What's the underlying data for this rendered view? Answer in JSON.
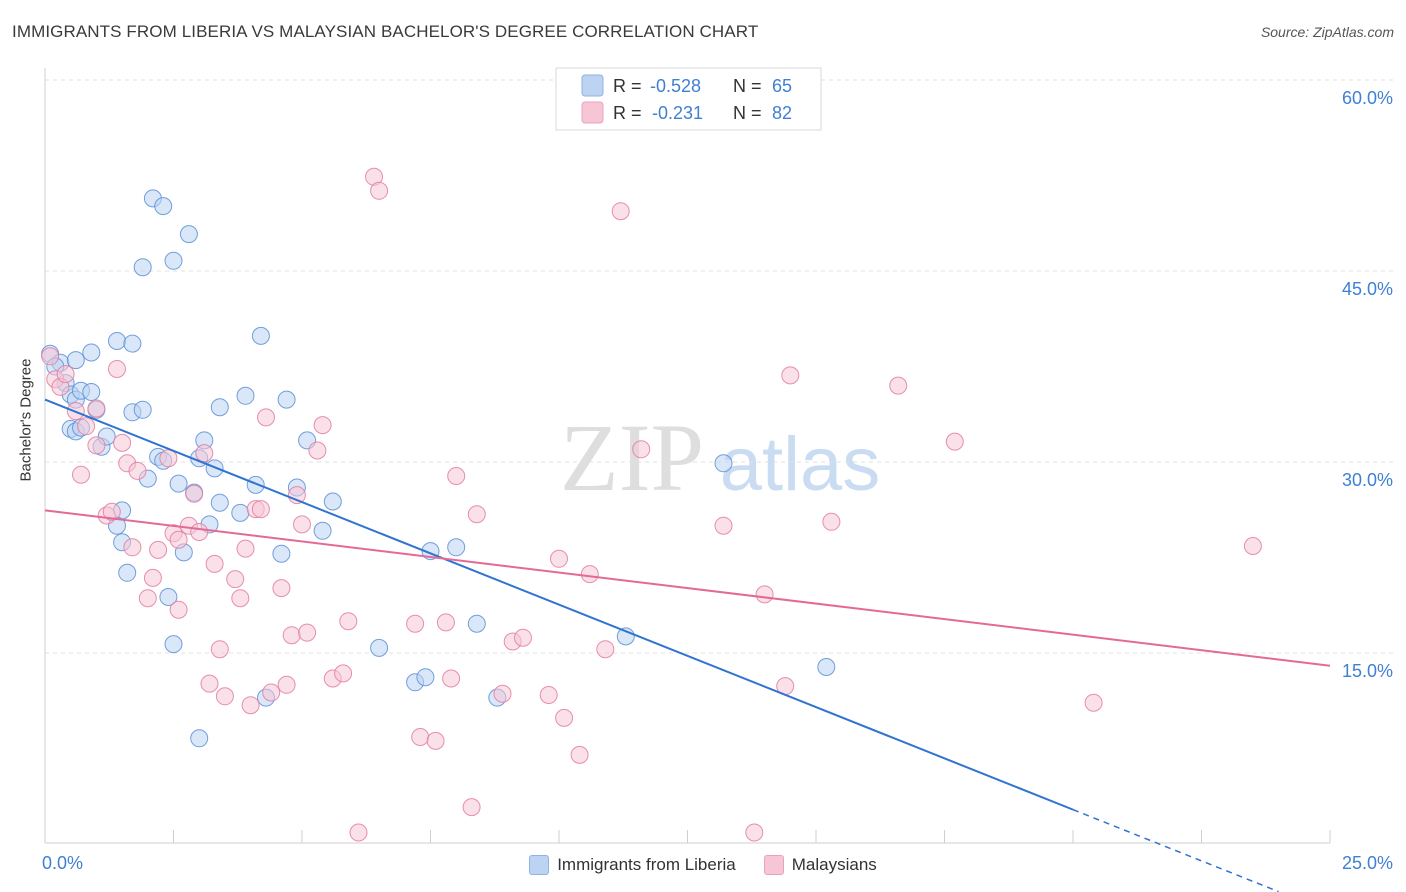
{
  "title": "IMMIGRANTS FROM LIBERIA VS MALAYSIAN BACHELOR'S DEGREE CORRELATION CHART",
  "source": "Source: ZipAtlas.com",
  "watermark": {
    "zip": "ZIP",
    "atlas": "atlas"
  },
  "stats_legend": [
    {
      "r_label": "R =",
      "r_value": "-0.528",
      "n_label": "N =",
      "n_value": "65"
    },
    {
      "r_label": "R =",
      "r_value": "-0.231",
      "n_label": "N =",
      "n_value": "82"
    }
  ],
  "chart_data": {
    "type": "scatter",
    "title": "IMMIGRANTS FROM LIBERIA VS MALAYSIAN BACHELOR'S DEGREE CORRELATION CHART",
    "xlabel": "",
    "ylabel": "Bachelor's Degree",
    "xlim": [
      0,
      25
    ],
    "ylim": [
      0,
      63
    ],
    "x_tick_labels": [
      "0.0%",
      "25.0%"
    ],
    "y_ticks": [
      15,
      30,
      45,
      60
    ],
    "y_tick_labels": [
      "15.0%",
      "30.0%",
      "45.0%",
      "60.0%"
    ],
    "grid": "horizontal dashed",
    "legend_position": "bottom-center",
    "series": [
      {
        "name": "Immigrants from Liberia",
        "color": "#5b8fd6",
        "fill": "#bcd3f2",
        "trend": {
          "x0": 0,
          "y0": 34.9,
          "x1": 20,
          "y1": 2.7,
          "dashed_to_x": 24
        },
        "points": [
          [
            0.1,
            38.5
          ],
          [
            0.3,
            37.8
          ],
          [
            0.4,
            36.2
          ],
          [
            0.5,
            35.3
          ],
          [
            0.6,
            34.9
          ],
          [
            0.7,
            35.6
          ],
          [
            0.2,
            37.5
          ],
          [
            0.9,
            35.5
          ],
          [
            1.0,
            34.1
          ],
          [
            0.5,
            32.6
          ],
          [
            0.6,
            32.4
          ],
          [
            0.7,
            32.7
          ],
          [
            1.1,
            31.2
          ],
          [
            1.2,
            32.0
          ],
          [
            0.9,
            38.6
          ],
          [
            1.4,
            39.5
          ],
          [
            1.7,
            39.3
          ],
          [
            1.5,
            26.2
          ],
          [
            1.4,
            25.0
          ],
          [
            1.5,
            23.7
          ],
          [
            1.6,
            21.3
          ],
          [
            1.7,
            33.9
          ],
          [
            1.9,
            34.1
          ],
          [
            2.0,
            28.7
          ],
          [
            2.2,
            30.4
          ],
          [
            2.3,
            30.1
          ],
          [
            2.1,
            50.7
          ],
          [
            2.3,
            50.1
          ],
          [
            1.9,
            45.3
          ],
          [
            2.5,
            45.8
          ],
          [
            2.8,
            47.9
          ],
          [
            2.9,
            27.6
          ],
          [
            2.6,
            28.3
          ],
          [
            3.0,
            30.3
          ],
          [
            3.1,
            31.7
          ],
          [
            3.2,
            25.1
          ],
          [
            3.3,
            29.5
          ],
          [
            3.4,
            26.8
          ],
          [
            3.4,
            34.3
          ],
          [
            3.8,
            26.0
          ],
          [
            3.9,
            35.2
          ],
          [
            4.1,
            28.2
          ],
          [
            4.2,
            39.9
          ],
          [
            4.6,
            22.8
          ],
          [
            4.7,
            34.9
          ],
          [
            4.9,
            28.0
          ],
          [
            5.1,
            31.7
          ],
          [
            5.4,
            24.6
          ],
          [
            5.6,
            26.9
          ],
          [
            2.4,
            19.4
          ],
          [
            2.5,
            15.7
          ],
          [
            2.7,
            22.9
          ],
          [
            3.0,
            8.3
          ],
          [
            4.3,
            11.5
          ],
          [
            6.5,
            15.4
          ],
          [
            7.2,
            12.7
          ],
          [
            7.4,
            13.1
          ],
          [
            7.5,
            23.0
          ],
          [
            8.0,
            23.3
          ],
          [
            8.4,
            17.3
          ],
          [
            8.8,
            11.5
          ],
          [
            11.3,
            16.3
          ],
          [
            13.2,
            29.9
          ],
          [
            15.2,
            13.9
          ],
          [
            0.6,
            38.0
          ]
        ]
      },
      {
        "name": "Malaysians",
        "color": "#e37ca0",
        "fill": "#f6c6d6",
        "trend": {
          "x0": 0,
          "y0": 26.2,
          "x1": 25,
          "y1": 14.0
        },
        "points": [
          [
            0.1,
            38.3
          ],
          [
            0.2,
            36.5
          ],
          [
            0.3,
            35.9
          ],
          [
            0.4,
            36.9
          ],
          [
            0.6,
            34.0
          ],
          [
            0.8,
            32.8
          ],
          [
            1.0,
            34.2
          ],
          [
            0.7,
            29.0
          ],
          [
            1.0,
            31.3
          ],
          [
            1.2,
            25.8
          ],
          [
            1.3,
            26.1
          ],
          [
            1.4,
            37.3
          ],
          [
            1.5,
            31.5
          ],
          [
            1.6,
            29.9
          ],
          [
            1.7,
            23.3
          ],
          [
            1.8,
            29.3
          ],
          [
            2.0,
            19.3
          ],
          [
            2.1,
            20.9
          ],
          [
            2.2,
            23.1
          ],
          [
            2.4,
            30.3
          ],
          [
            2.5,
            24.4
          ],
          [
            2.6,
            23.9
          ],
          [
            2.6,
            18.4
          ],
          [
            2.8,
            25.0
          ],
          [
            2.9,
            27.5
          ],
          [
            3.0,
            24.5
          ],
          [
            3.1,
            30.7
          ],
          [
            3.2,
            12.6
          ],
          [
            3.3,
            22.0
          ],
          [
            3.4,
            15.3
          ],
          [
            3.5,
            11.6
          ],
          [
            3.7,
            20.8
          ],
          [
            3.8,
            19.3
          ],
          [
            3.9,
            23.2
          ],
          [
            4.0,
            10.9
          ],
          [
            4.1,
            26.3
          ],
          [
            4.2,
            26.3
          ],
          [
            4.3,
            33.5
          ],
          [
            4.4,
            11.9
          ],
          [
            4.6,
            20.1
          ],
          [
            4.7,
            12.5
          ],
          [
            4.8,
            16.4
          ],
          [
            4.9,
            27.4
          ],
          [
            5.0,
            25.1
          ],
          [
            5.1,
            16.6
          ],
          [
            5.3,
            30.9
          ],
          [
            5.4,
            32.9
          ],
          [
            5.6,
            13.0
          ],
          [
            5.8,
            13.4
          ],
          [
            5.9,
            17.5
          ],
          [
            6.1,
            0.9
          ],
          [
            6.4,
            52.4
          ],
          [
            6.5,
            51.3
          ],
          [
            7.2,
            17.3
          ],
          [
            7.3,
            8.4
          ],
          [
            7.6,
            8.1
          ],
          [
            7.8,
            17.4
          ],
          [
            7.9,
            13.0
          ],
          [
            8.0,
            28.9
          ],
          [
            8.3,
            2.9
          ],
          [
            8.4,
            25.9
          ],
          [
            8.9,
            11.8
          ],
          [
            9.1,
            15.9
          ],
          [
            9.3,
            16.2
          ],
          [
            9.8,
            11.7
          ],
          [
            10.0,
            22.4
          ],
          [
            10.1,
            9.9
          ],
          [
            10.4,
            7.0
          ],
          [
            10.6,
            21.2
          ],
          [
            10.9,
            15.3
          ],
          [
            11.2,
            49.7
          ],
          [
            11.6,
            31.0
          ],
          [
            13.2,
            25.0
          ],
          [
            13.8,
            0.9
          ],
          [
            14.0,
            19.6
          ],
          [
            14.4,
            12.4
          ],
          [
            14.5,
            36.8
          ],
          [
            15.3,
            25.3
          ],
          [
            16.6,
            36.0
          ],
          [
            17.7,
            31.6
          ],
          [
            20.4,
            11.1
          ],
          [
            23.5,
            23.4
          ]
        ]
      }
    ]
  }
}
